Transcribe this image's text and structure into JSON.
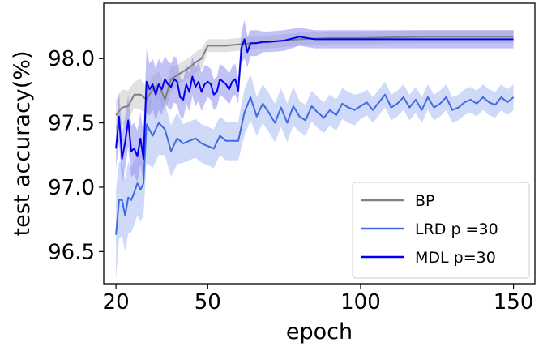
{
  "chart_data": {
    "type": "line",
    "xlabel": "epoch",
    "ylabel": "test accuracy(%)",
    "xlim": [
      16,
      157
    ],
    "ylim": [
      96.25,
      98.43
    ],
    "xticks": [
      20,
      50,
      100,
      150
    ],
    "yticks": [
      96.5,
      97.0,
      97.5,
      98.0
    ],
    "ytick_labels": [
      "96.5",
      "97.0",
      "97.5",
      "98.0"
    ],
    "legend_position": "lower-right",
    "grid": false,
    "series": [
      {
        "name": "BP",
        "color": "#808080",
        "band_color": "#c8c8c8",
        "x": [
          20,
          22,
          24,
          26,
          28,
          30,
          32,
          34,
          36,
          38,
          40,
          42,
          44,
          46,
          48,
          50,
          52,
          56,
          60,
          70,
          80,
          90,
          100,
          120,
          150
        ],
        "y": [
          97.56,
          97.62,
          97.63,
          97.72,
          97.72,
          97.68,
          97.76,
          97.8,
          97.68,
          97.84,
          97.87,
          97.9,
          97.93,
          97.97,
          98.0,
          98.1,
          98.1,
          98.1,
          98.11,
          98.13,
          98.15,
          98.16,
          98.16,
          98.17,
          98.17
        ],
        "band": [
          0.12,
          0.14,
          0.12,
          0.1,
          0.12,
          0.1,
          0.1,
          0.1,
          0.1,
          0.1,
          0.08,
          0.08,
          0.08,
          0.08,
          0.08,
          0.05,
          0.05,
          0.05,
          0.05,
          0.05,
          0.05,
          0.05,
          0.05,
          0.05,
          0.05
        ]
      },
      {
        "name": "LRD p =30",
        "color": "#4169e1",
        "band_color": "#a7bcf3",
        "x": [
          20,
          21,
          22,
          23,
          24,
          25,
          26,
          27,
          28,
          29,
          30,
          32,
          34,
          36,
          38,
          40,
          42,
          44,
          46,
          48,
          50,
          52,
          54,
          56,
          58,
          60,
          62,
          64,
          66,
          68,
          70,
          72,
          74,
          76,
          78,
          80,
          82,
          84,
          86,
          88,
          90,
          92,
          94,
          96,
          98,
          100,
          102,
          104,
          106,
          108,
          110,
          112,
          114,
          116,
          118,
          120,
          122,
          124,
          126,
          128,
          130,
          132,
          134,
          136,
          138,
          140,
          142,
          144,
          146,
          148,
          150
        ],
        "y": [
          96.63,
          96.9,
          96.9,
          96.78,
          96.92,
          96.9,
          96.96,
          97.03,
          96.98,
          97.03,
          97.49,
          97.4,
          97.5,
          97.45,
          97.28,
          97.38,
          97.34,
          97.36,
          97.38,
          97.34,
          97.32,
          97.3,
          97.4,
          97.36,
          97.36,
          97.36,
          97.58,
          97.7,
          97.55,
          97.65,
          97.58,
          97.5,
          97.62,
          97.5,
          97.63,
          97.55,
          97.52,
          97.63,
          97.58,
          97.54,
          97.6,
          97.56,
          97.65,
          97.62,
          97.6,
          97.63,
          97.66,
          97.6,
          97.66,
          97.72,
          97.62,
          97.65,
          97.7,
          97.62,
          97.68,
          97.6,
          97.7,
          97.62,
          97.65,
          97.7,
          97.6,
          97.62,
          97.66,
          97.68,
          97.65,
          97.7,
          97.66,
          97.64,
          97.7,
          97.66,
          97.7
        ],
        "band": [
          0.35,
          0.3,
          0.28,
          0.28,
          0.28,
          0.25,
          0.25,
          0.25,
          0.25,
          0.25,
          0.3,
          0.25,
          0.25,
          0.2,
          0.2,
          0.2,
          0.15,
          0.15,
          0.15,
          0.15,
          0.15,
          0.15,
          0.15,
          0.15,
          0.15,
          0.15,
          0.18,
          0.18,
          0.15,
          0.15,
          0.15,
          0.15,
          0.15,
          0.15,
          0.15,
          0.12,
          0.12,
          0.12,
          0.12,
          0.12,
          0.12,
          0.12,
          0.12,
          0.12,
          0.12,
          0.1,
          0.1,
          0.1,
          0.1,
          0.1,
          0.1,
          0.1,
          0.1,
          0.1,
          0.1,
          0.1,
          0.1,
          0.1,
          0.1,
          0.1,
          0.1,
          0.1,
          0.1,
          0.1,
          0.1,
          0.1,
          0.1,
          0.1,
          0.1,
          0.1,
          0.1
        ]
      },
      {
        "name": "MDL p=30",
        "color": "#0000ee",
        "band_color": "#8f8ff0",
        "x": [
          20,
          21,
          22,
          23,
          24,
          25,
          26,
          27,
          28,
          29,
          30,
          31,
          32,
          33,
          34,
          35,
          36,
          37,
          38,
          39,
          40,
          41,
          42,
          43,
          44,
          45,
          46,
          47,
          48,
          49,
          50,
          51,
          52,
          53,
          54,
          55,
          56,
          57,
          58,
          59,
          60,
          61,
          62,
          63,
          64,
          66,
          68,
          70,
          75,
          80,
          85,
          90,
          95,
          100,
          110,
          120,
          130,
          140,
          150
        ],
        "y": [
          97.3,
          97.55,
          97.22,
          97.35,
          97.52,
          97.28,
          97.3,
          97.24,
          97.38,
          97.22,
          97.82,
          97.76,
          97.8,
          97.72,
          97.8,
          97.76,
          97.84,
          97.8,
          97.78,
          97.84,
          97.82,
          97.7,
          97.68,
          97.8,
          97.74,
          97.86,
          97.78,
          97.82,
          97.74,
          97.8,
          97.82,
          97.8,
          97.72,
          97.74,
          97.84,
          97.82,
          97.8,
          97.76,
          97.82,
          97.84,
          97.75,
          98.08,
          98.15,
          98.05,
          98.12,
          98.12,
          98.13,
          98.13,
          98.14,
          98.17,
          98.15,
          98.15,
          98.15,
          98.15,
          98.15,
          98.15,
          98.15,
          98.15,
          98.15
        ],
        "band": [
          0.15,
          0.2,
          0.2,
          0.2,
          0.2,
          0.2,
          0.2,
          0.2,
          0.2,
          0.2,
          0.25,
          0.2,
          0.2,
          0.2,
          0.2,
          0.2,
          0.18,
          0.18,
          0.18,
          0.18,
          0.18,
          0.15,
          0.15,
          0.15,
          0.15,
          0.15,
          0.15,
          0.15,
          0.15,
          0.15,
          0.12,
          0.12,
          0.12,
          0.12,
          0.12,
          0.12,
          0.12,
          0.12,
          0.12,
          0.12,
          0.1,
          0.12,
          0.15,
          0.12,
          0.1,
          0.1,
          0.08,
          0.08,
          0.08,
          0.07,
          0.07,
          0.07,
          0.07,
          0.07,
          0.07,
          0.07,
          0.07,
          0.07,
          0.07
        ]
      }
    ]
  }
}
